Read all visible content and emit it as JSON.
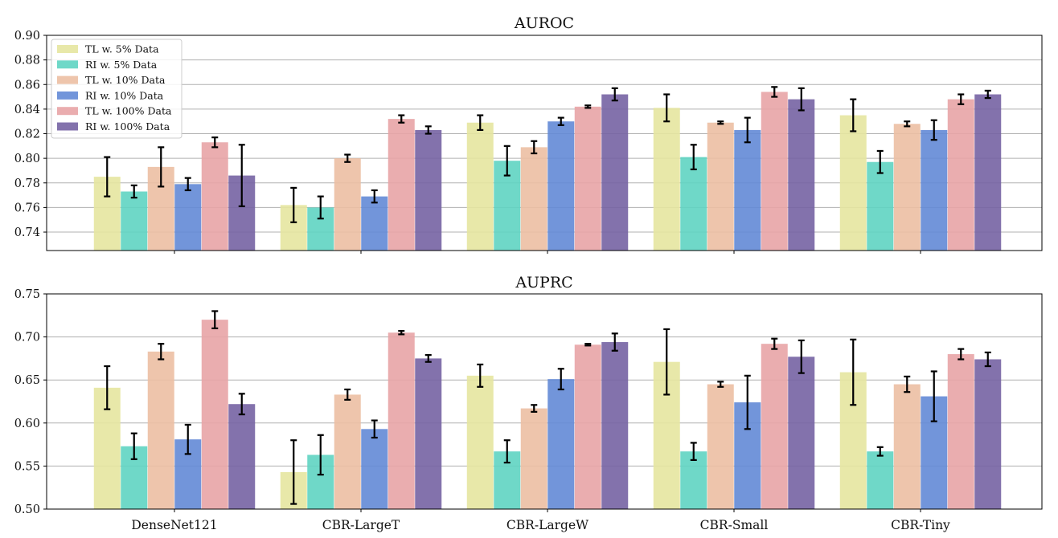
{
  "chart_data": [
    {
      "type": "bar",
      "title": "AUROC",
      "categories": [
        "DenseNet121",
        "CBR-LargeT",
        "CBR-LargeW",
        "CBR-Small",
        "CBR-Tiny"
      ],
      "ylim": [
        0.725,
        0.9
      ],
      "yticks": [
        0.74,
        0.76,
        0.78,
        0.8,
        0.82,
        0.84,
        0.86,
        0.88,
        0.9
      ],
      "grid": true,
      "legend_position": "top-left",
      "series": [
        {
          "name": "TL w. 5% Data",
          "color": "#e6e6a0",
          "values": [
            0.785,
            0.762,
            0.829,
            0.841,
            0.835
          ],
          "errors": [
            0.016,
            0.014,
            0.006,
            0.011,
            0.013
          ]
        },
        {
          "name": "RI w. 5% Data",
          "color": "#5fd4c2",
          "values": [
            0.773,
            0.76,
            0.798,
            0.801,
            0.797
          ],
          "errors": [
            0.005,
            0.009,
            0.012,
            0.01,
            0.009
          ]
        },
        {
          "name": "TL w. 10% Data",
          "color": "#ecbfa3",
          "values": [
            0.793,
            0.8,
            0.809,
            0.829,
            0.828
          ],
          "errors": [
            0.016,
            0.003,
            0.005,
            0.001,
            0.002
          ]
        },
        {
          "name": "RI w. 10% Data",
          "color": "#6389d6",
          "values": [
            0.779,
            0.769,
            0.83,
            0.823,
            0.823
          ],
          "errors": [
            0.005,
            0.005,
            0.003,
            0.01,
            0.008
          ]
        },
        {
          "name": "TL w. 100% Data",
          "color": "#e8a4a6",
          "values": [
            0.813,
            0.832,
            0.842,
            0.854,
            0.848
          ],
          "errors": [
            0.004,
            0.003,
            0.001,
            0.004,
            0.004
          ]
        },
        {
          "name": "RI w. 100% Data",
          "color": "#7563a3",
          "values": [
            0.786,
            0.823,
            0.852,
            0.848,
            0.852
          ],
          "errors": [
            0.025,
            0.003,
            0.005,
            0.009,
            0.003
          ]
        }
      ]
    },
    {
      "type": "bar",
      "title": "AUPRC",
      "categories": [
        "DenseNet121",
        "CBR-LargeT",
        "CBR-LargeW",
        "CBR-Small",
        "CBR-Tiny"
      ],
      "ylim": [
        0.5,
        0.75
      ],
      "yticks": [
        0.5,
        0.55,
        0.6,
        0.65,
        0.7,
        0.75
      ],
      "grid": true,
      "series": [
        {
          "name": "TL w. 5% Data",
          "color": "#e6e6a0",
          "values": [
            0.641,
            0.543,
            0.655,
            0.671,
            0.659
          ],
          "errors": [
            0.025,
            0.037,
            0.013,
            0.038,
            0.038
          ]
        },
        {
          "name": "RI w. 5% Data",
          "color": "#5fd4c2",
          "values": [
            0.573,
            0.563,
            0.567,
            0.567,
            0.567
          ],
          "errors": [
            0.015,
            0.023,
            0.013,
            0.01,
            0.005
          ]
        },
        {
          "name": "TL w. 10% Data",
          "color": "#ecbfa3",
          "values": [
            0.683,
            0.633,
            0.617,
            0.645,
            0.645
          ],
          "errors": [
            0.009,
            0.006,
            0.004,
            0.003,
            0.009
          ]
        },
        {
          "name": "RI w. 10% Data",
          "color": "#6389d6",
          "values": [
            0.581,
            0.593,
            0.651,
            0.624,
            0.631
          ],
          "errors": [
            0.017,
            0.01,
            0.012,
            0.031,
            0.029
          ]
        },
        {
          "name": "TL w. 100% Data",
          "color": "#e8a4a6",
          "values": [
            0.72,
            0.705,
            0.691,
            0.692,
            0.68
          ],
          "errors": [
            0.01,
            0.002,
            0.001,
            0.006,
            0.006
          ]
        },
        {
          "name": "RI w. 100% Data",
          "color": "#7563a3",
          "values": [
            0.622,
            0.675,
            0.694,
            0.677,
            0.674
          ],
          "errors": [
            0.012,
            0.004,
            0.01,
            0.019,
            0.008
          ]
        }
      ]
    }
  ]
}
